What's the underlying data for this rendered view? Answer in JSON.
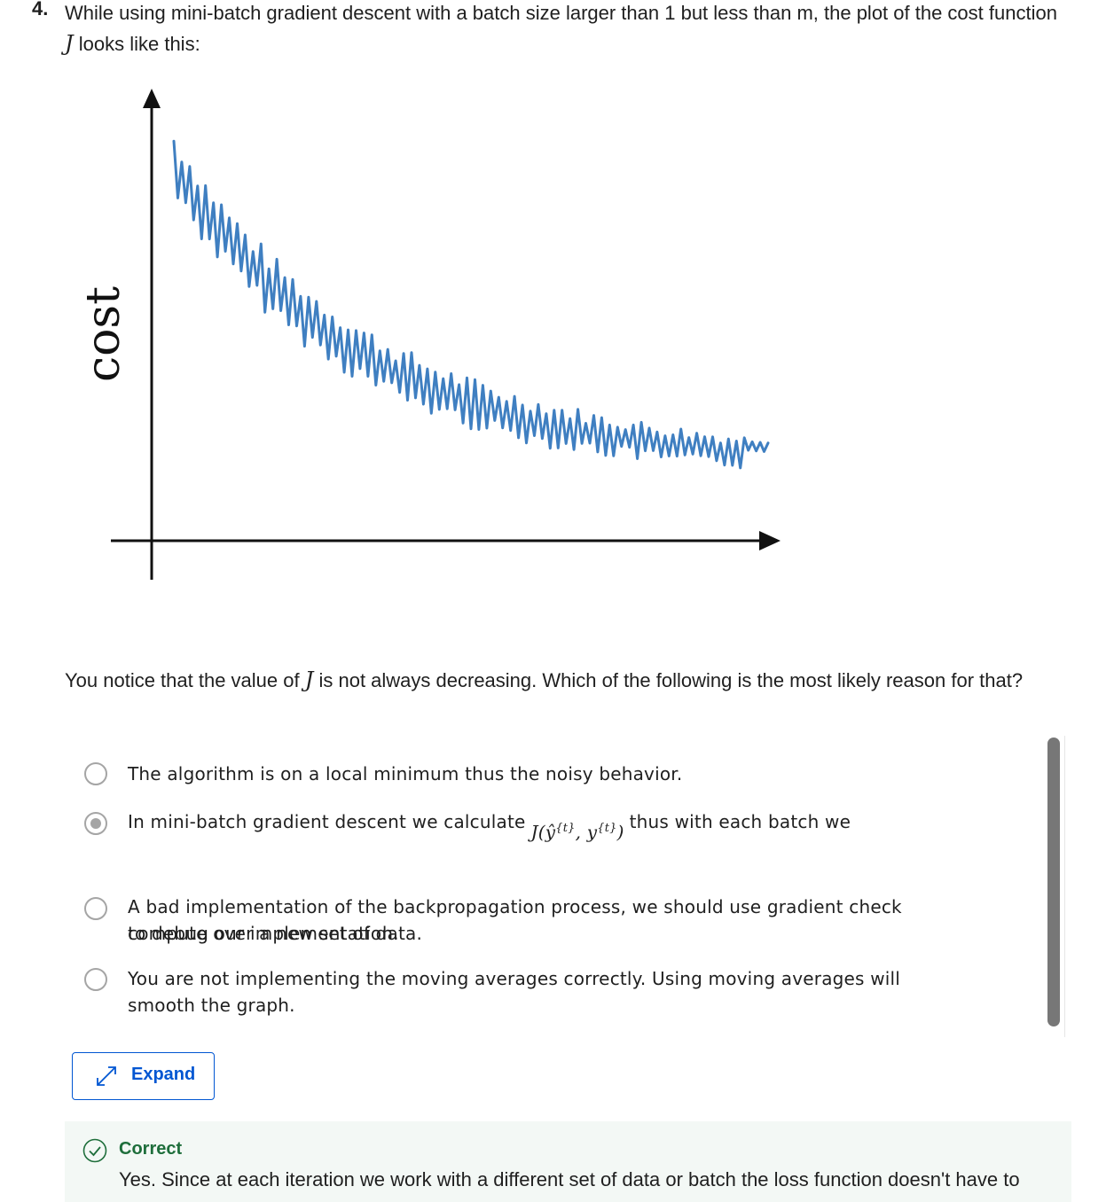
{
  "question": {
    "number": "4.",
    "text_before": "While using mini-batch gradient descent with a batch size larger than 1 but less than m, the plot of the cost function ",
    "variable": "J",
    "text_after": " looks like this:",
    "subtext_before": "You notice that the value of ",
    "subtext_after": " is not always decreasing. Which of the following is the most likely reason for that?"
  },
  "figure": {
    "ylabel": "cost",
    "line_color": "#3f7fc1"
  },
  "options": [
    {
      "text": "The algorithm is on a local minimum thus the noisy behavior.",
      "selected": false
    },
    {
      "text_before": "In mini-batch gradient descent we calculate",
      "formula": "J(ŷ{t}, y{t})",
      "formula_parts": {
        "fn": "J(",
        "yhat": "ŷ",
        "sup": "{t}",
        "sep": ", ",
        "y": "y",
        "close": ")"
      },
      "text_after": "thus with each batch we",
      "text_line2": "compute over a new set of data.",
      "selected": true
    },
    {
      "text": "A bad implementation of the backpropagation process, we should use gradient check to debug our implementation.",
      "selected": false
    },
    {
      "text": "You are not implementing the moving averages correctly. Using moving averages will smooth the graph.",
      "selected": false
    }
  ],
  "expand_button": {
    "label": "Expand"
  },
  "feedback": {
    "title": "Correct",
    "text": "Yes. Since at each iteration we work with a different set of data or batch the loss function doesn't have to"
  },
  "colors": {
    "accent": "#0056d2",
    "correct": "#1e6e3b",
    "feedback_bg": "#f3f8f5"
  }
}
